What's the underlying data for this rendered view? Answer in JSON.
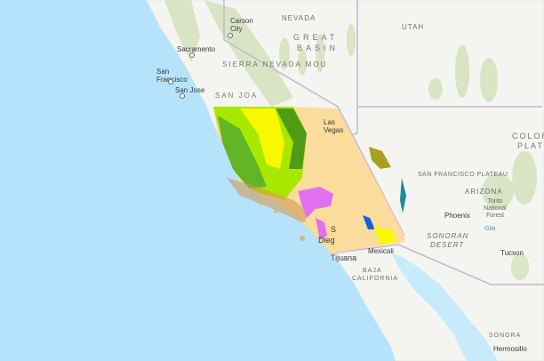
{
  "map": {
    "basemap_colors": {
      "ocean": "#b5e3fb",
      "land": "#f4f4f0",
      "vegetation": "#d4e2bc",
      "border": "#c8b6cc"
    },
    "overlay_colors": {
      "desert": "#fbdc9c",
      "yellow": "#f8f800",
      "lime": "#a8e800",
      "green": "#50a830",
      "dark_green": "#2a7a20",
      "pink": "#e070f0",
      "blue": "#1060e0",
      "olive": "#a8a020",
      "teal": "#1a8a9a"
    },
    "labels": {
      "carson_city": "Carson City",
      "sacramento": "Sacramento",
      "san_francisco": "San Francisco",
      "san_jose": "San Jose",
      "nevada": "NEVADA",
      "great": "GREAT",
      "basin": "BASIN",
      "utah": "UTAH",
      "las_vegas": "Las Vegas",
      "colorado": "COLOR",
      "plateau": "PLATE",
      "sf_plateau": "SAN FRANCISCO PLATEAU",
      "arizona": "ARIZONA",
      "tonto": "Tonto National Forest",
      "phoenix": "Phoenix",
      "gila": "Gila",
      "sonoran": "SONORAN",
      "desert": "DESERT",
      "tucson": "Tucson",
      "mexicali": "Mexicali",
      "tijuana": "Tijuana",
      "san_diego_s": "S",
      "san_diego": "Dieg",
      "baja": "BAJA",
      "california": "CALIFORNIA",
      "sonora": "SONORA",
      "hermosillo": "Hermosillo",
      "sierra_nevada": "SIERRA NEVADA MOU",
      "san_joaquin": "SAN JOA"
    }
  }
}
